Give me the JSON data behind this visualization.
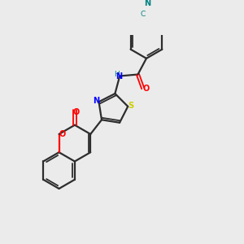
{
  "bg_color": "#ebebeb",
  "bond_color": "#2d2d2d",
  "atom_colors": {
    "N": "#0000ff",
    "O": "#ff0000",
    "S": "#cccc00",
    "C_cyano": "#008080",
    "NH": "#008080"
  },
  "lw_single": 1.6,
  "lw_double": 1.3
}
